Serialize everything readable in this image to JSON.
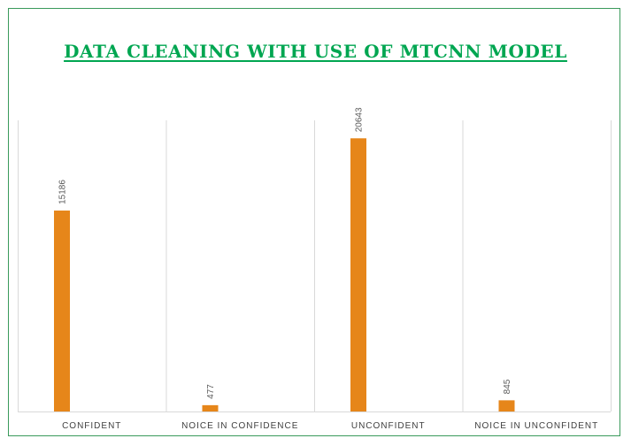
{
  "chart_data": {
    "type": "bar",
    "title": "DATA CLEANING WITH USE OF MTCNN MODEL",
    "categories": [
      "CONFIDENT",
      "NOICE IN CONFIDENCE",
      "UNCONFIDENT",
      "NOICE IN UNCONFIDENT"
    ],
    "values": [
      15186,
      477,
      20643,
      845
    ],
    "data_labels": [
      "15186",
      "477",
      "20643",
      "845"
    ],
    "xlabel": "",
    "ylabel": "",
    "ylim": [
      0,
      22000
    ],
    "grid": "vertical category separators",
    "legend": "none",
    "bar_color": "#e6861a",
    "title_color": "#00a651",
    "frame_color": "#3a9a5b",
    "grid_color": "#d9d9d9"
  }
}
